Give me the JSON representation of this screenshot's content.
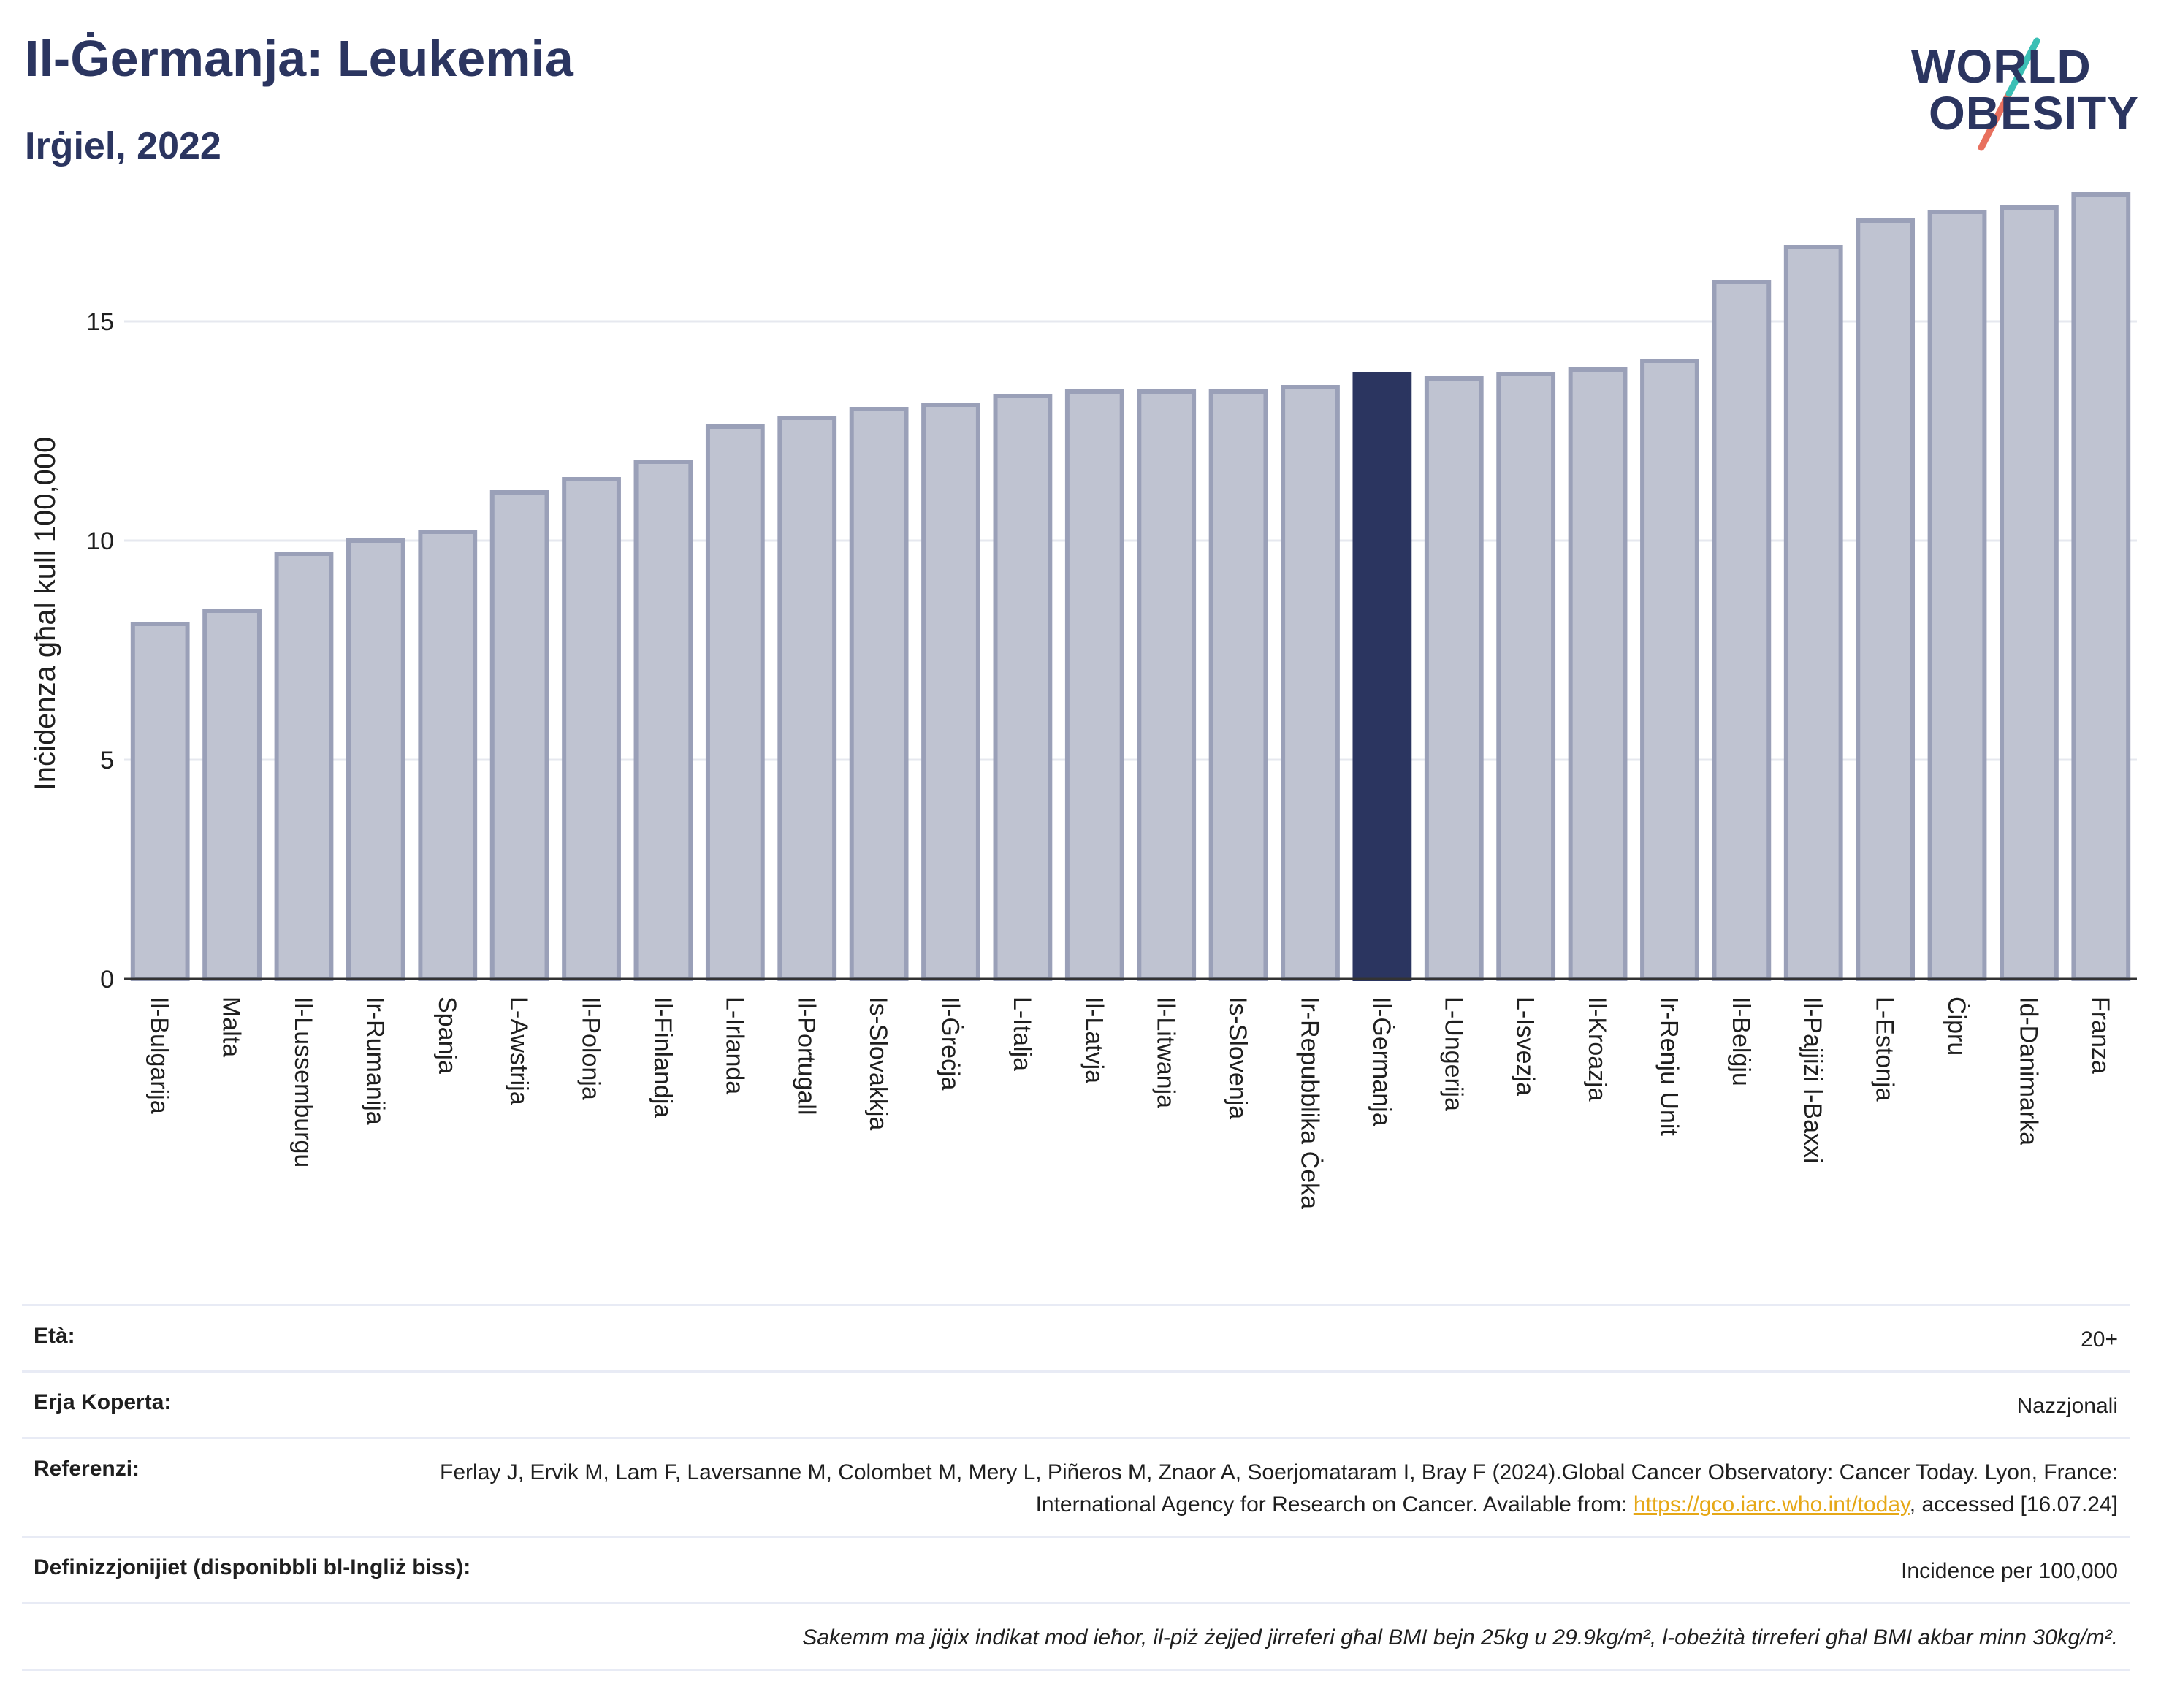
{
  "header": {
    "title": "Il-Ġermanja: Leukemia",
    "subtitle": "Irġiel, 2022"
  },
  "logo": {
    "line1": "WORLD",
    "line2": "OBESITY"
  },
  "chart_data": {
    "type": "bar",
    "ylabel": "Inċidenza għal kull 100,000",
    "ylim": [
      0,
      18
    ],
    "yticks": [
      0,
      5,
      10,
      15
    ],
    "grid": true,
    "highlight": "Il-Ġermanja",
    "colors": {
      "bar": "#bfc3d1",
      "bar_edge": "#9aa0b8",
      "highlight": "#2b3560"
    },
    "categories": [
      "Il-Bulgarija",
      "Malta",
      "Il-Lussemburgu",
      "Ir-Rumanija",
      "Spanja",
      "L-Awstrija",
      "Il-Polonja",
      "Il-Finlandja",
      "L-Irlanda",
      "Il-Portugall",
      "Is-Slovakkja",
      "Il-Ġreċja",
      "L-Italja",
      "Il-Latvja",
      "Il-Litwanja",
      "Is-Slovenja",
      "Ir-Repubblika Ċeka",
      "Il-Ġermanja",
      "L-Ungerija",
      "L-Isvezja",
      "Il-Kroazja",
      "Ir-Renju Unit",
      "Il-Belġju",
      "Il-Pajjiżi l-Baxxi",
      "L-Estonja",
      "Ċipru",
      "Id-Danimarka",
      "Franza"
    ],
    "values": [
      8.1,
      8.4,
      9.7,
      10.0,
      10.2,
      11.1,
      11.4,
      11.8,
      12.6,
      12.8,
      13.0,
      13.1,
      13.3,
      13.4,
      13.4,
      13.4,
      13.5,
      13.8,
      13.7,
      13.8,
      13.9,
      14.1,
      15.9,
      16.7,
      17.3,
      17.5,
      17.6,
      17.9
    ]
  },
  "info": {
    "age_label": "Età:",
    "age_value": "20+",
    "area_label": "Erja Koperta:",
    "area_value": "Nazzjonali",
    "ref_label": "Referenzi:",
    "ref_text": "Ferlay J, Ervik M, Lam F, Laversanne M, Colombet M, Mery L, Piñeros M, Znaor A, Soerjomataram I, Bray F (2024).Global Cancer Observatory: Cancer Today. Lyon, France: International Agency for Research on Cancer. Available from: ",
    "ref_link": "https://gco.iarc.who.int/today",
    "ref_tail": ", accessed [16.07.24]",
    "def_label": "Definizzjonijiet (disponibbli bl-Ingliż biss):",
    "def_value": "Incidence per 100,000",
    "note": "Sakemm ma jiġix indikat mod ieħor, il-piż żejjed jirreferi għal BMI bejn 25kg u 29.9kg/m², l-obeżità tirreferi għal BMI akbar minn 30kg/m²."
  }
}
